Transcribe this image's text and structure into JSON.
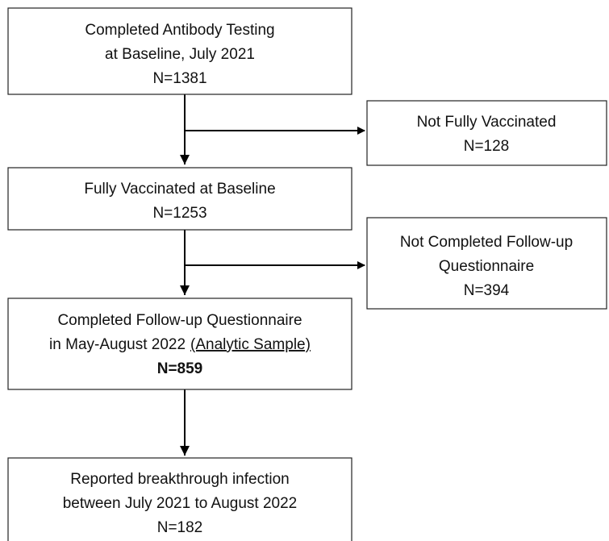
{
  "nodes": [
    {
      "lines": [
        "Completed Antibody Testing",
        "at Baseline, July 2021",
        "N=1381"
      ]
    },
    {
      "lines": [
        "Not Fully Vaccinated",
        "N=128"
      ]
    },
    {
      "lines": [
        "Fully Vaccinated at Baseline",
        "N=1253"
      ]
    },
    {
      "lines": [
        "Not Completed Follow-up",
        "Questionnaire",
        "N=394"
      ]
    },
    {
      "lines": [
        "Completed Follow-up Questionnaire",
        "in May-August 2022",
        "N=859"
      ],
      "underlined": "(Analytic Sample)"
    },
    {
      "lines": [
        "Reported breakthrough infection",
        "between July 2021 to August 2022",
        "N=182"
      ]
    }
  ]
}
